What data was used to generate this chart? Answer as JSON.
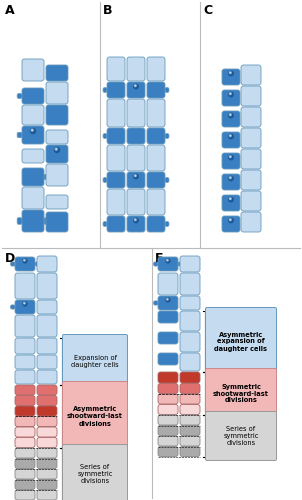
{
  "bg_color": "#ffffff",
  "dark_blue": "#3A7FC1",
  "light_blue": "#C5DCF0",
  "medium_blue": "#5B9BD5",
  "dark_red": "#C0392B",
  "medium_red": "#E07070",
  "light_red": "#F2B8B8",
  "pale_red": "#F8D8D8",
  "gray_dark": "#AAAAAA",
  "gray_light": "#D5D5D5",
  "box_border_blue": "#6699BB",
  "box_border_red": "#CC8888",
  "box_border_gray": "#999999",
  "box_texts": {
    "D_top": "Expansion of\ndaughter cells",
    "D_mid": "Asymmetric\nshootward-last\ndivisions",
    "D_bot": "Series of\nsymmetric\ndivisions",
    "E_top": "Asymmetric\nexpansion of\ndaughter cells",
    "E_mid": "Symmetric\nshootward-last\ndivisions",
    "E_bot": "Series of\nsymmetric\ndivisions"
  }
}
